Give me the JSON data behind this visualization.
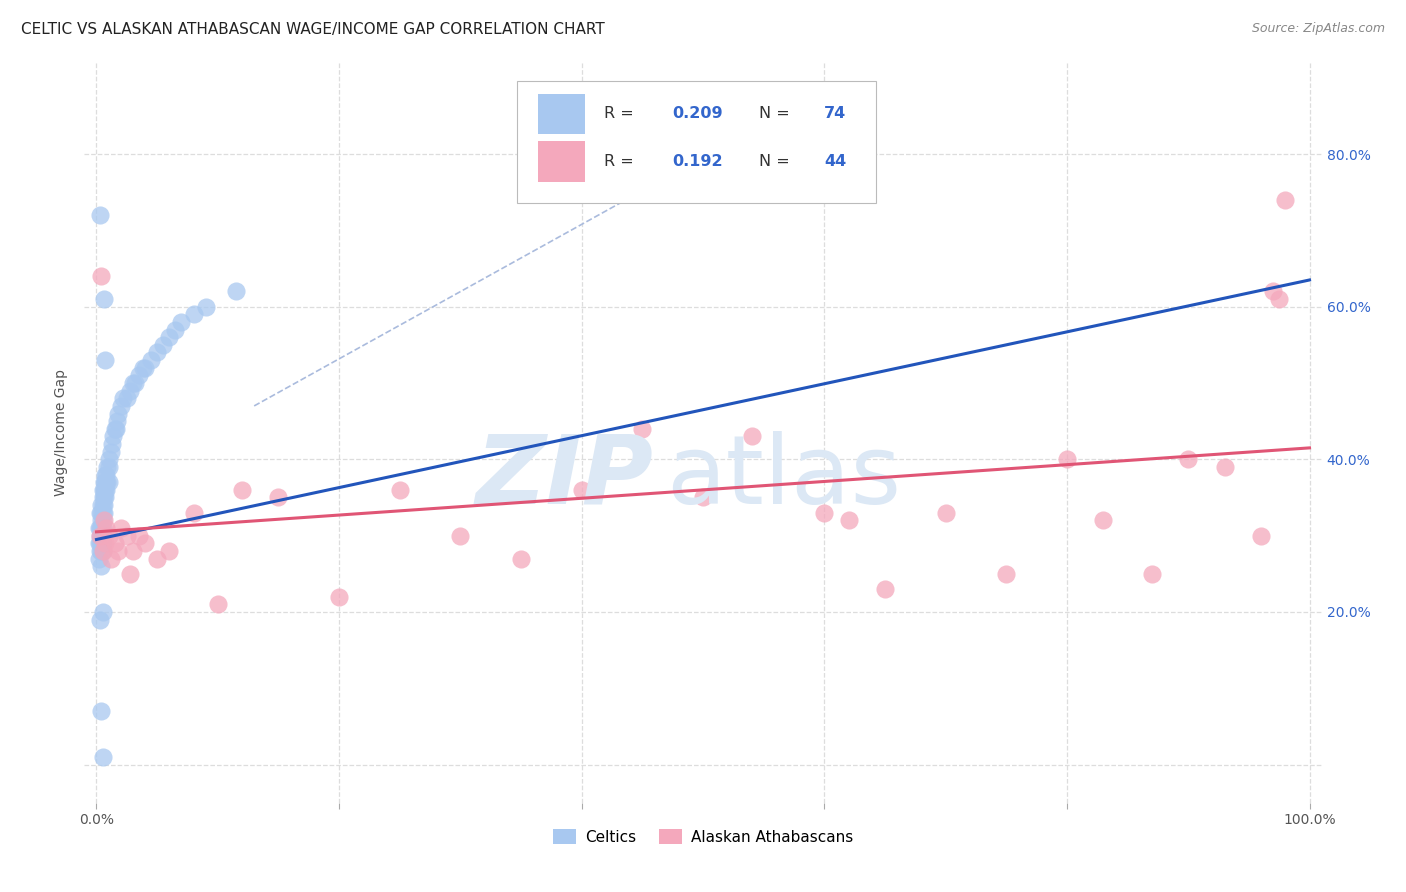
{
  "title": "CELTIC VS ALASKAN ATHABASCAN WAGE/INCOME GAP CORRELATION CHART",
  "source": "Source: ZipAtlas.com",
  "ylabel": "Wage/Income Gap",
  "xlim": [
    -0.01,
    1.01
  ],
  "ylim": [
    -0.05,
    0.92
  ],
  "grid_yticks": [
    0.0,
    0.2,
    0.4,
    0.6,
    0.8
  ],
  "grid_xticks": [
    0.0,
    0.2,
    0.4,
    0.6,
    0.8,
    1.0
  ],
  "right_yticklabels": [
    "",
    "20.0%",
    "40.0%",
    "60.0%",
    "80.0%"
  ],
  "blue_color": "#A8C8F0",
  "pink_color": "#F4A8BC",
  "blue_line_color": "#2255BB",
  "pink_line_color": "#E05575",
  "diag_color": "#AABBDD",
  "grid_color": "#DDDDDD",
  "celtics_label": "Celtics",
  "athabascan_label": "Alaskan Athabascans",
  "blue_line_x": [
    0.0,
    1.0
  ],
  "blue_line_y": [
    0.295,
    0.635
  ],
  "pink_line_x": [
    0.0,
    1.0
  ],
  "pink_line_y": [
    0.305,
    0.415
  ],
  "diag_line_x": [
    0.13,
    0.55
  ],
  "diag_line_y": [
    0.47,
    0.84
  ],
  "celtics_x": [
    0.002,
    0.002,
    0.002,
    0.003,
    0.003,
    0.003,
    0.003,
    0.003,
    0.004,
    0.004,
    0.004,
    0.004,
    0.004,
    0.004,
    0.004,
    0.004,
    0.005,
    0.005,
    0.005,
    0.005,
    0.005,
    0.005,
    0.005,
    0.005,
    0.005,
    0.006,
    0.006,
    0.006,
    0.006,
    0.006,
    0.007,
    0.007,
    0.007,
    0.007,
    0.008,
    0.008,
    0.008,
    0.009,
    0.009,
    0.01,
    0.01,
    0.01,
    0.012,
    0.013,
    0.014,
    0.015,
    0.016,
    0.017,
    0.018,
    0.02,
    0.022,
    0.025,
    0.028,
    0.03,
    0.032,
    0.035,
    0.038,
    0.04,
    0.045,
    0.05,
    0.055,
    0.06,
    0.065,
    0.07,
    0.08,
    0.09,
    0.003,
    0.004,
    0.005,
    0.006,
    0.003,
    0.007,
    0.115,
    0.005
  ],
  "celtics_y": [
    0.31,
    0.29,
    0.27,
    0.33,
    0.31,
    0.3,
    0.29,
    0.28,
    0.34,
    0.33,
    0.32,
    0.31,
    0.3,
    0.29,
    0.28,
    0.26,
    0.36,
    0.35,
    0.34,
    0.33,
    0.32,
    0.31,
    0.3,
    0.29,
    0.28,
    0.37,
    0.36,
    0.35,
    0.34,
    0.33,
    0.38,
    0.37,
    0.36,
    0.35,
    0.38,
    0.37,
    0.36,
    0.39,
    0.37,
    0.4,
    0.39,
    0.37,
    0.41,
    0.42,
    0.43,
    0.44,
    0.44,
    0.45,
    0.46,
    0.47,
    0.48,
    0.48,
    0.49,
    0.5,
    0.5,
    0.51,
    0.52,
    0.52,
    0.53,
    0.54,
    0.55,
    0.56,
    0.57,
    0.58,
    0.59,
    0.6,
    0.19,
    0.07,
    0.2,
    0.61,
    0.72,
    0.53,
    0.62,
    0.01
  ],
  "athabascan_x": [
    0.003,
    0.004,
    0.005,
    0.006,
    0.007,
    0.008,
    0.01,
    0.012,
    0.015,
    0.018,
    0.02,
    0.025,
    0.028,
    0.03,
    0.035,
    0.04,
    0.05,
    0.06,
    0.08,
    0.1,
    0.12,
    0.15,
    0.2,
    0.25,
    0.3,
    0.35,
    0.4,
    0.45,
    0.5,
    0.54,
    0.6,
    0.62,
    0.65,
    0.7,
    0.75,
    0.8,
    0.83,
    0.87,
    0.9,
    0.93,
    0.96,
    0.97,
    0.975,
    0.98
  ],
  "athabascan_y": [
    0.3,
    0.64,
    0.28,
    0.32,
    0.29,
    0.31,
    0.3,
    0.27,
    0.29,
    0.28,
    0.31,
    0.3,
    0.25,
    0.28,
    0.3,
    0.29,
    0.27,
    0.28,
    0.33,
    0.21,
    0.36,
    0.35,
    0.22,
    0.36,
    0.3,
    0.27,
    0.36,
    0.44,
    0.35,
    0.43,
    0.33,
    0.32,
    0.23,
    0.33,
    0.25,
    0.4,
    0.32,
    0.25,
    0.4,
    0.39,
    0.3,
    0.62,
    0.61,
    0.74
  ]
}
